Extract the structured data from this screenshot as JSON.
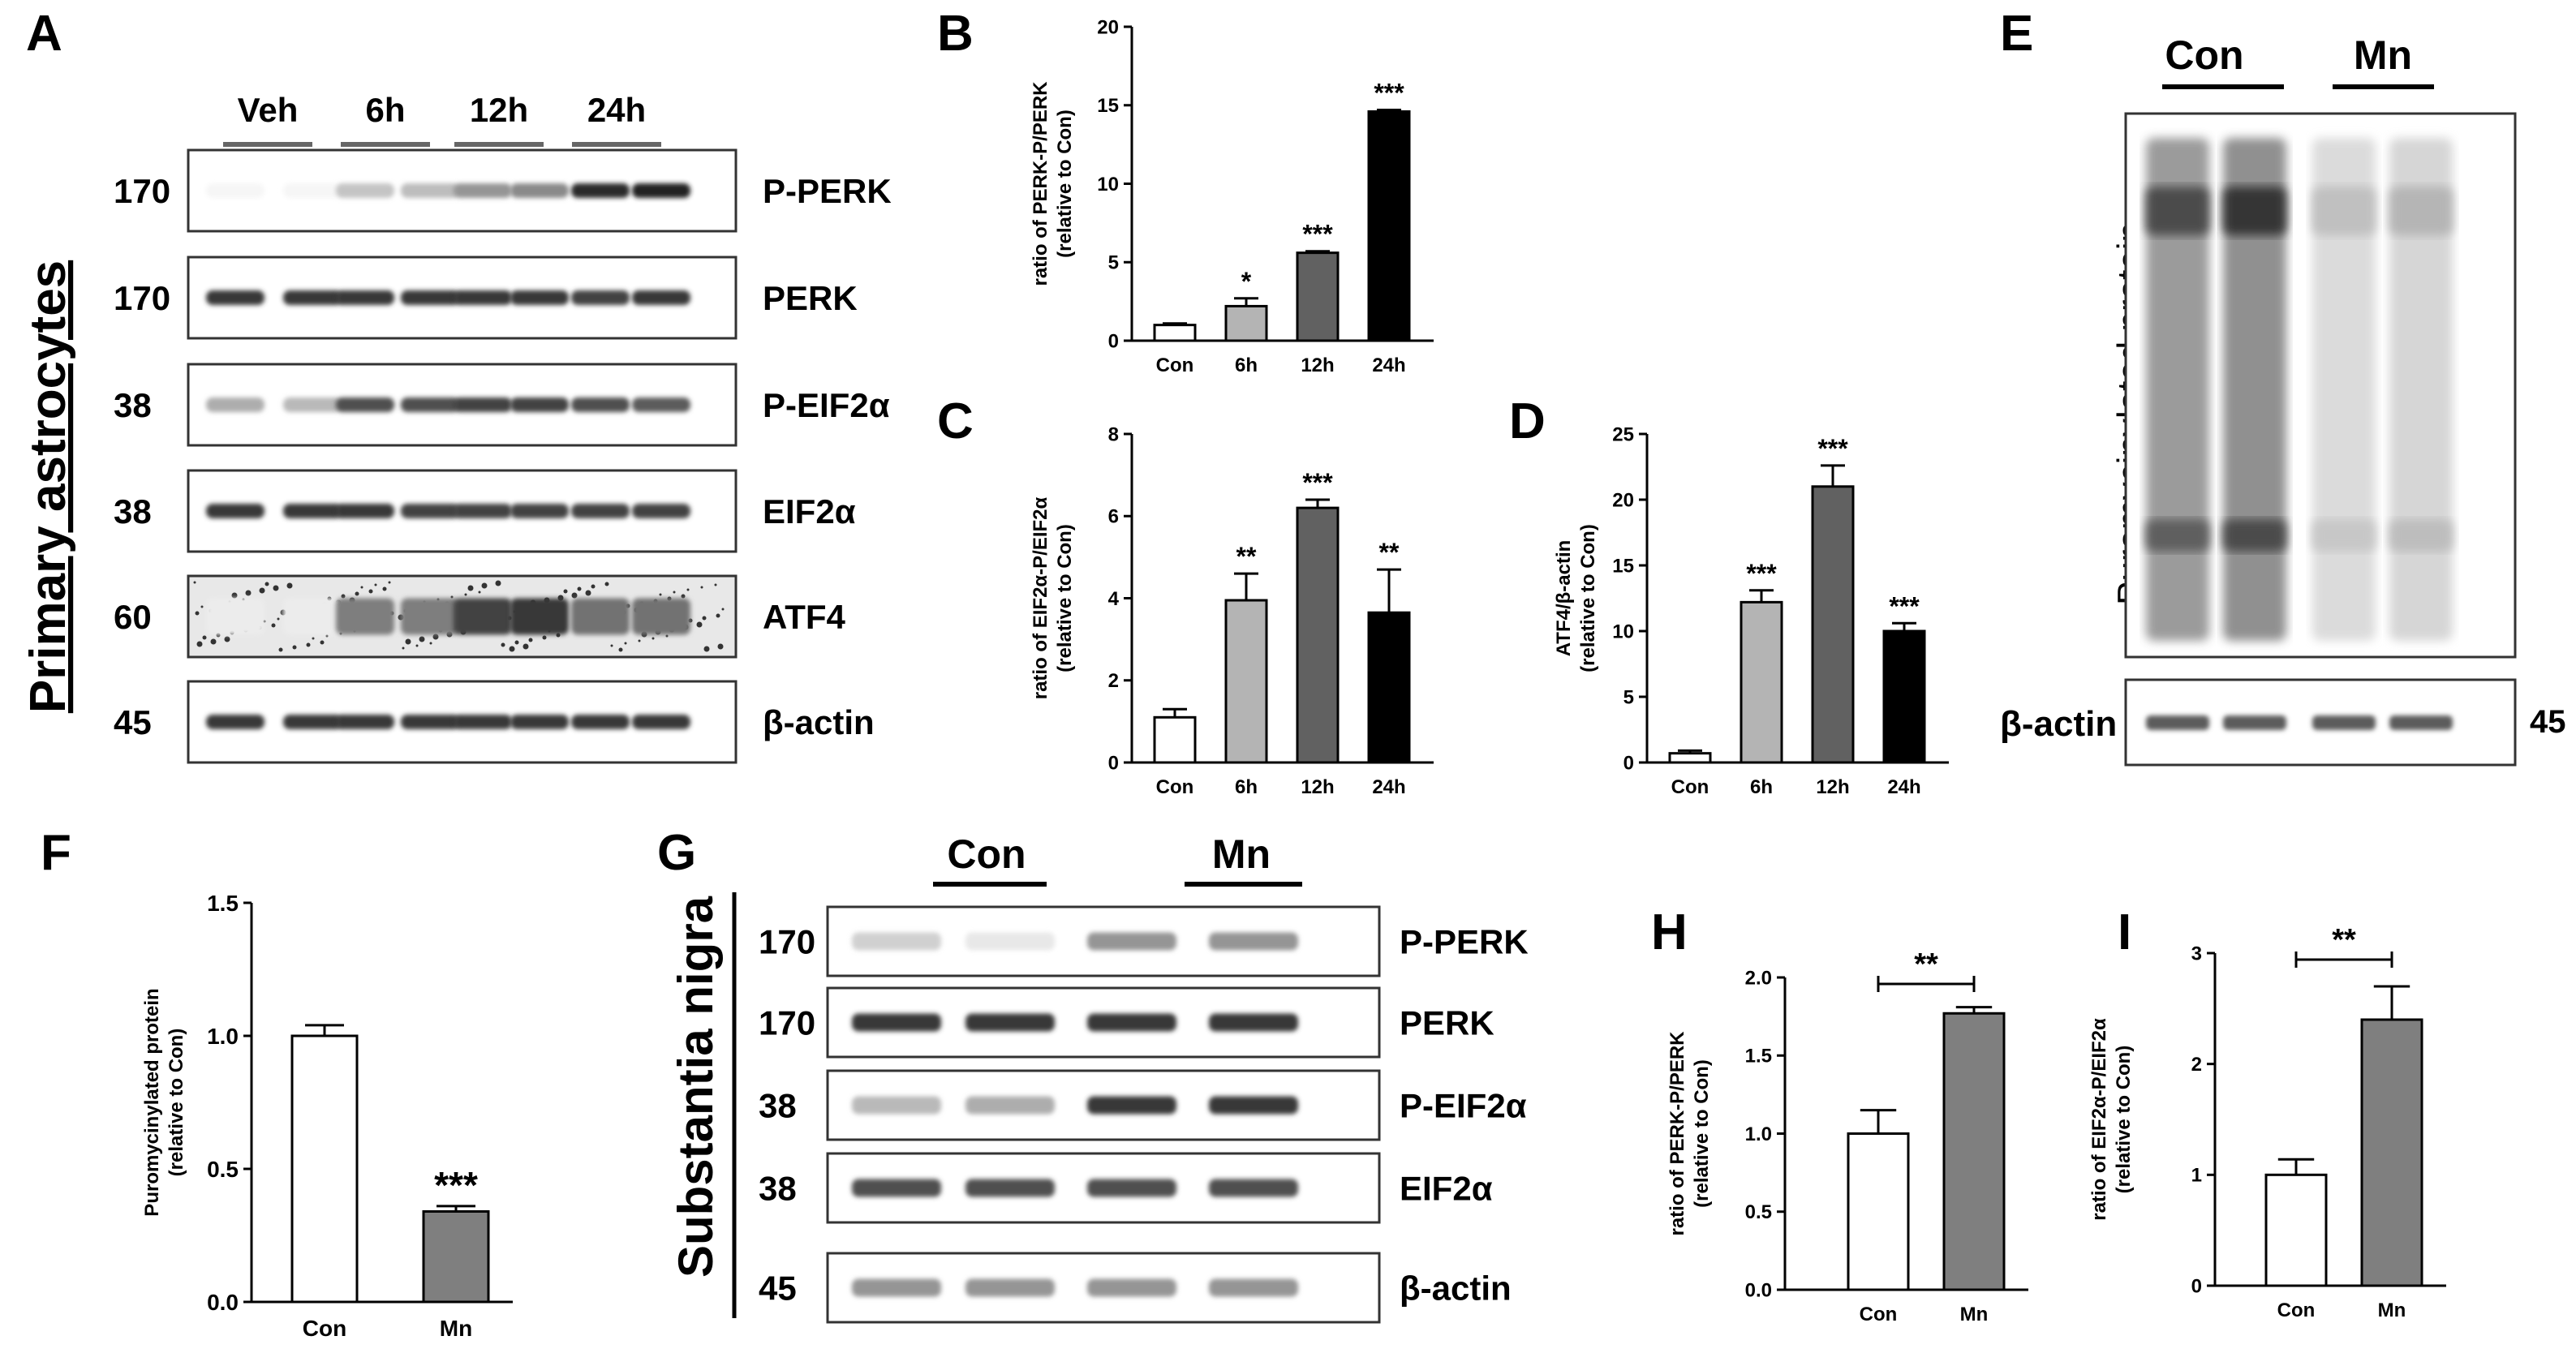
{
  "panelA": {
    "panel_label": "A",
    "side_label": "Primary astrocytes",
    "lanes": [
      "Veh",
      "6h",
      "12h",
      "24h"
    ],
    "rows": [
      {
        "mw": "170",
        "name": "P-PERK",
        "bands": [
          0.04,
          0.04,
          0.25,
          0.28,
          0.45,
          0.5,
          0.9,
          0.95
        ]
      },
      {
        "mw": "170",
        "name": "PERK",
        "bands": [
          0.85,
          0.85,
          0.85,
          0.85,
          0.85,
          0.85,
          0.8,
          0.85
        ]
      },
      {
        "mw": "38",
        "name": "P-EIF2α",
        "bands": [
          0.35,
          0.3,
          0.75,
          0.75,
          0.8,
          0.8,
          0.75,
          0.7
        ]
      },
      {
        "mw": "38",
        "name": "EIF2α",
        "bands": [
          0.85,
          0.85,
          0.85,
          0.8,
          0.8,
          0.8,
          0.8,
          0.8
        ]
      },
      {
        "mw": "60",
        "name": "ATF4",
        "bands": [
          0.08,
          0.08,
          0.55,
          0.55,
          0.8,
          0.85,
          0.6,
          0.6
        ]
      },
      {
        "mw": "45",
        "name": "β-actin",
        "bands": [
          0.85,
          0.85,
          0.85,
          0.85,
          0.85,
          0.85,
          0.85,
          0.85
        ]
      }
    ]
  },
  "panelE": {
    "panel_label": "E",
    "groups": [
      "Con",
      "Mn"
    ],
    "side_label": "Puromycinylated protein",
    "loading_label": "β-actin",
    "loading_mw": "45",
    "lane_intensity": [
      0.85,
      0.95,
      0.3,
      0.35
    ]
  },
  "panelG": {
    "panel_label": "G",
    "side_label": "Substantia nigra",
    "groups": [
      "Con",
      "Mn"
    ],
    "rows": [
      {
        "mw": "170",
        "name": "P-PERK",
        "bands": [
          0.2,
          0.1,
          0.45,
          0.45
        ]
      },
      {
        "mw": "170",
        "name": "PERK",
        "bands": [
          0.85,
          0.85,
          0.85,
          0.85
        ]
      },
      {
        "mw": "38",
        "name": "P-EIF2α",
        "bands": [
          0.3,
          0.35,
          0.85,
          0.85
        ]
      },
      {
        "mw": "38",
        "name": "EIF2α",
        "bands": [
          0.75,
          0.75,
          0.75,
          0.75
        ]
      },
      {
        "mw": "45",
        "name": "β-actin",
        "bands": [
          0.45,
          0.45,
          0.45,
          0.45
        ]
      }
    ]
  },
  "colors": {
    "white": "#ffffff",
    "light_gray": "#b4b4b4",
    "dark_gray": "#616161",
    "black": "#000000",
    "mn_gray": "#7f7f7f"
  },
  "chart_data": [
    {
      "id": "B",
      "panel_label": "B",
      "type": "bar",
      "categories": [
        "Con",
        "6h",
        "12h",
        "24h"
      ],
      "values": [
        1.0,
        2.2,
        5.6,
        14.6
      ],
      "errors": [
        0.1,
        0.5,
        0.1,
        0.1
      ],
      "significance": [
        "",
        "*",
        "***",
        "***"
      ],
      "ylabel": [
        "ratio of PERK-P/PERK",
        "(relative to Con)"
      ],
      "ylim": [
        0,
        20
      ],
      "yticks": [
        0,
        5,
        10,
        15,
        20
      ],
      "colors": [
        "#ffffff",
        "#b4b4b4",
        "#616161",
        "#000000"
      ]
    },
    {
      "id": "C",
      "panel_label": "C",
      "type": "bar",
      "categories": [
        "Con",
        "6h",
        "12h",
        "24h"
      ],
      "values": [
        1.1,
        3.95,
        6.2,
        3.65
      ],
      "errors": [
        0.2,
        0.65,
        0.2,
        1.05
      ],
      "significance": [
        "",
        "**",
        "***",
        "**"
      ],
      "ylabel": [
        "ratio of EIF2α-P/EIF2α",
        "(relative to Con)"
      ],
      "ylim": [
        0,
        8
      ],
      "yticks": [
        0,
        2,
        4,
        6,
        8
      ],
      "colors": [
        "#ffffff",
        "#b4b4b4",
        "#616161",
        "#000000"
      ]
    },
    {
      "id": "D",
      "panel_label": "D",
      "type": "bar",
      "categories": [
        "Con",
        "6h",
        "12h",
        "24h"
      ],
      "values": [
        0.7,
        12.2,
        21.0,
        10.0
      ],
      "errors": [
        0.2,
        0.9,
        1.6,
        0.6
      ],
      "significance": [
        "",
        "***",
        "***",
        "***"
      ],
      "ylabel": [
        "ATF4/β-actin",
        "(relative to Con)"
      ],
      "ylim": [
        0,
        25
      ],
      "yticks": [
        0,
        5,
        10,
        15,
        20,
        25
      ],
      "colors": [
        "#ffffff",
        "#b4b4b4",
        "#616161",
        "#000000"
      ]
    },
    {
      "id": "F",
      "panel_label": "F",
      "type": "bar",
      "categories": [
        "Con",
        "Mn"
      ],
      "values": [
        1.0,
        0.34
      ],
      "errors": [
        0.04,
        0.02
      ],
      "significance": [
        "",
        "***"
      ],
      "ylabel": [
        "Puromycinylated protein",
        "(relative to Con)"
      ],
      "ylim": [
        0,
        1.5
      ],
      "yticks": [
        "0.0",
        "0.5",
        "1.0",
        "1.5"
      ],
      "colors": [
        "#ffffff",
        "#7f7f7f"
      ]
    },
    {
      "id": "H",
      "panel_label": "H",
      "type": "bar",
      "categories": [
        "Con",
        "Mn"
      ],
      "values": [
        1.0,
        1.77
      ],
      "errors": [
        0.15,
        0.04
      ],
      "bracket": "**",
      "ylabel": [
        "ratio of PERK-P/PERK",
        "(relative to Con)"
      ],
      "ylim": [
        0,
        2.0
      ],
      "yticks": [
        "0.0",
        "0.5",
        "1.0",
        "1.5",
        "2.0"
      ],
      "colors": [
        "#ffffff",
        "#7f7f7f"
      ]
    },
    {
      "id": "I",
      "panel_label": "I",
      "type": "bar",
      "categories": [
        "Con",
        "Mn"
      ],
      "values": [
        1.0,
        2.4
      ],
      "errors": [
        0.14,
        0.3
      ],
      "bracket": "**",
      "ylabel": [
        "ratio of EIF2α-P/EIF2α",
        "(relative to Con)"
      ],
      "ylim": [
        0,
        3
      ],
      "yticks": [
        "0",
        "1",
        "2",
        "3"
      ],
      "colors": [
        "#ffffff",
        "#7f7f7f"
      ]
    }
  ]
}
